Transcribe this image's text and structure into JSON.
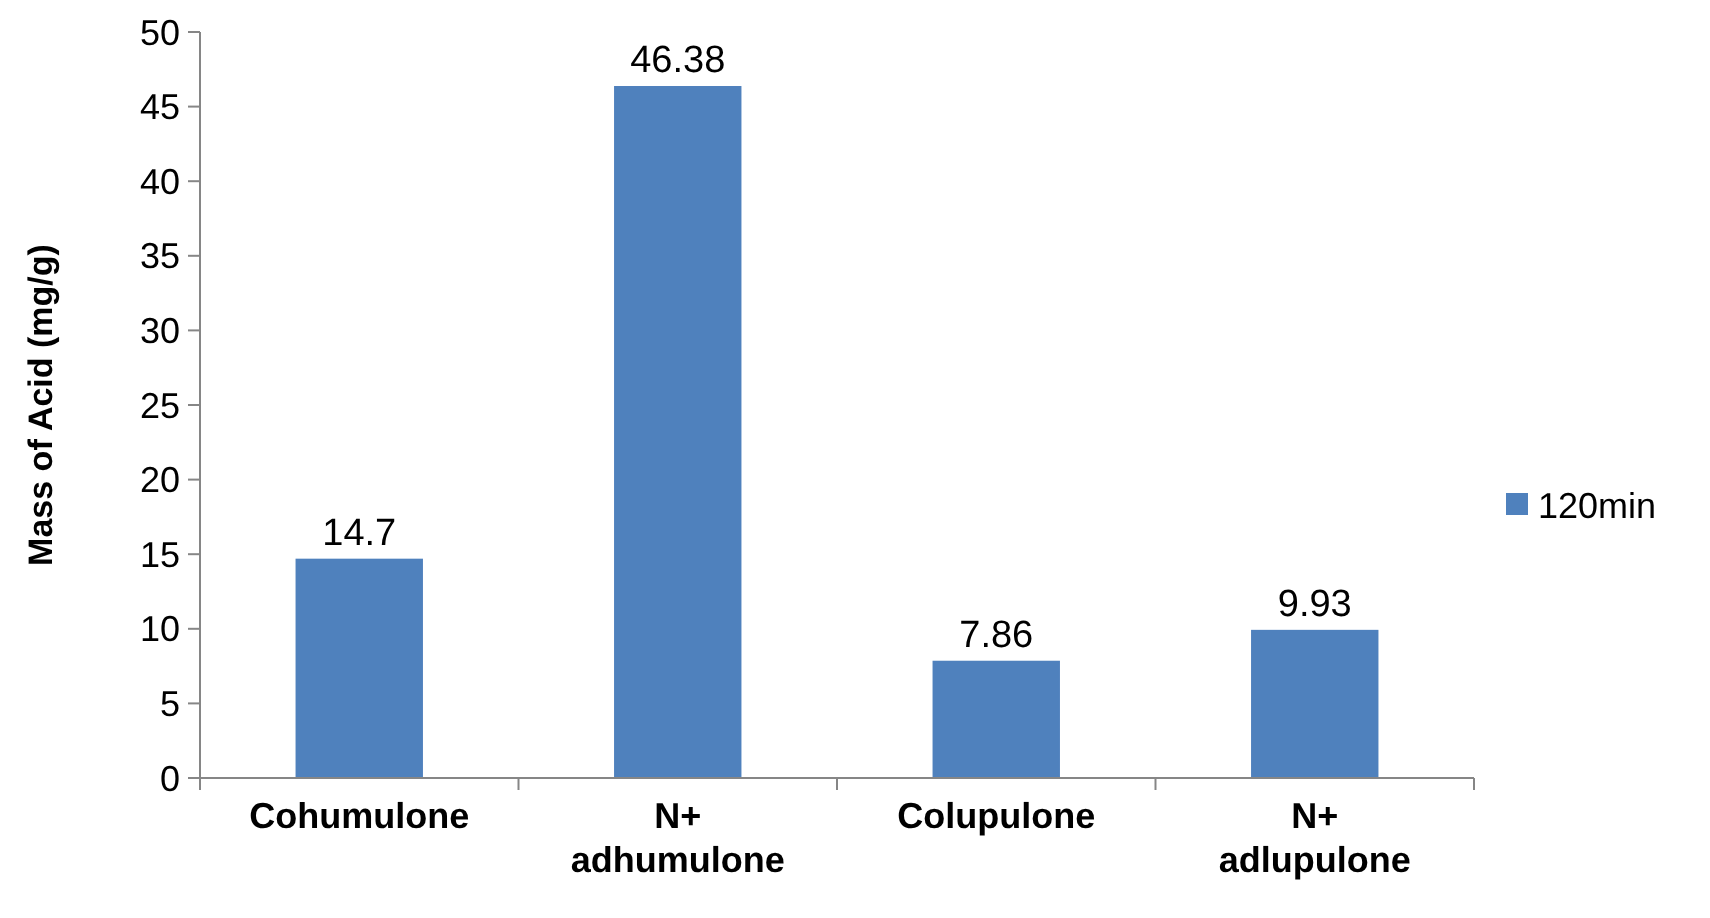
{
  "chart_data": {
    "type": "bar",
    "ylabel": "Mass of Acid (mg/g)",
    "categories": [
      "Cohumulone",
      "N+ adhumulone",
      "Colupulone",
      "N+ adlupulone"
    ],
    "series": [
      {
        "name": "120min",
        "color": "#4f81bd",
        "values": [
          14.7,
          46.38,
          7.86,
          9.93
        ]
      }
    ],
    "ylim": [
      0,
      50
    ],
    "yticks": [
      0,
      5,
      10,
      15,
      20,
      25,
      30,
      35,
      40,
      45,
      50
    ],
    "data_labels": true,
    "legend": "right",
    "grid": false
  }
}
